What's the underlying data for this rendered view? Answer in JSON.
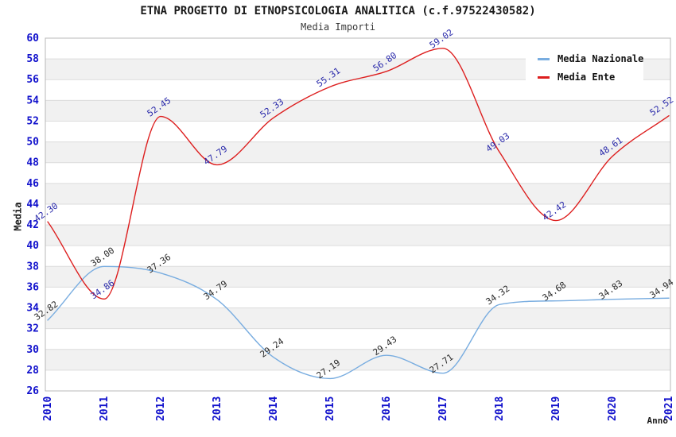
{
  "chart_data": {
    "type": "line",
    "title": "ETNA PROGETTO DI ETNOPSICOLOGIA ANALITICA (c.f.97522430582)",
    "subtitle": "Media Importi",
    "xlabel": "Anno",
    "ylabel": "Media",
    "ylim": [
      26,
      60
    ],
    "yticks": [
      60,
      58,
      56,
      54,
      52,
      50,
      48,
      46,
      44,
      42,
      40,
      38,
      36,
      34,
      32,
      30,
      28,
      26
    ],
    "categories": [
      "2010",
      "2011",
      "2012",
      "2013",
      "2014",
      "2015",
      "2016",
      "2017",
      "2018",
      "2019",
      "2020",
      "2021"
    ],
    "series": [
      {
        "name": "Media Nazionale",
        "color": "#79ade0",
        "label_color": "#2a2a2a",
        "values": [
          32.82,
          38.0,
          37.36,
          34.79,
          29.24,
          27.19,
          29.43,
          27.71,
          34.32,
          34.68,
          34.83,
          34.94
        ]
      },
      {
        "name": "Media Ente",
        "color": "#dd1e1e",
        "label_color": "#2929aa",
        "values": [
          42.3,
          34.86,
          52.45,
          47.79,
          52.33,
          55.31,
          56.8,
          59.02,
          49.03,
          42.42,
          48.61,
          52.52
        ]
      }
    ],
    "legend_position": "top-right",
    "grid": "horizontal",
    "colors": {
      "band": "#f1f1f1",
      "grid": "#dcdcdc",
      "border": "#b8b8b8",
      "tick": "#1111cc"
    }
  }
}
